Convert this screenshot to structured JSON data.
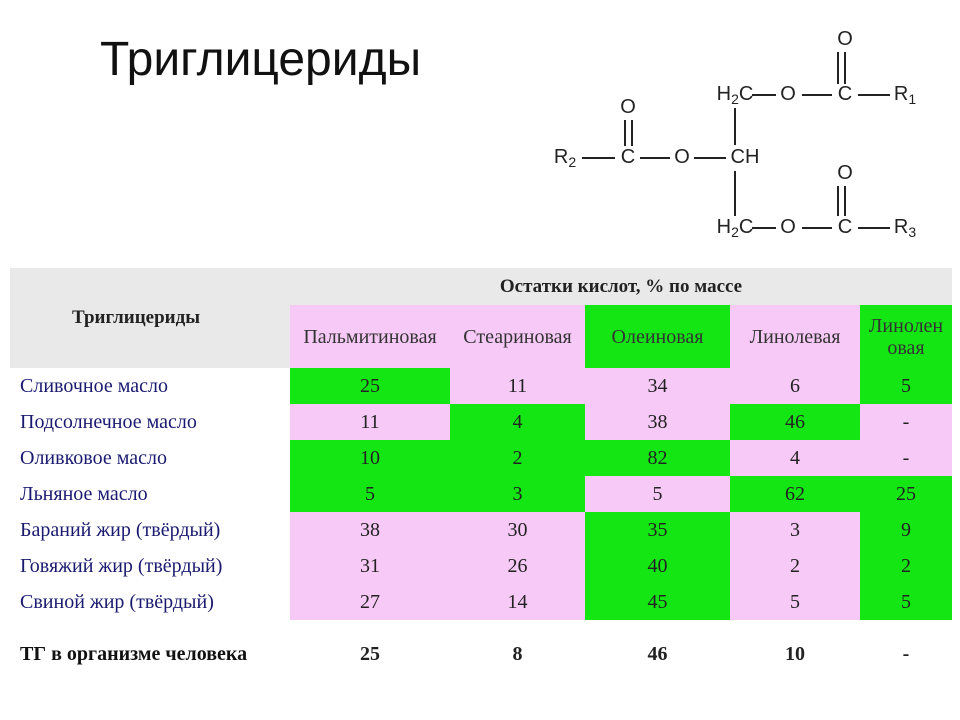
{
  "title": "Триглицериды",
  "structure": {
    "atoms": [
      {
        "text": "O"
      },
      {
        "text": "H",
        "sub": "2",
        "tail": "C"
      },
      {
        "text": "O"
      },
      {
        "text": "C"
      },
      {
        "text": "R",
        "sub": "1"
      },
      {
        "text": "O"
      },
      {
        "text": "R",
        "sub": "2"
      },
      {
        "text": "C"
      },
      {
        "text": "O"
      },
      {
        "text": "CH"
      },
      {
        "text": "O"
      },
      {
        "text": "H",
        "sub": "2",
        "tail": "C"
      },
      {
        "text": "O"
      },
      {
        "text": "C"
      },
      {
        "text": "R",
        "sub": "3"
      }
    ]
  },
  "table": {
    "corner": "Триглицериды",
    "group_header": "Остатки кислот, % по массе",
    "columns": [
      "Пальмитиновая",
      "Стеариновая",
      "Олеиновая",
      "Линолевая",
      "Линоленовая"
    ],
    "colors": {
      "green": "#14e614",
      "pink": "#f7c9f7",
      "header": "#e9e9e9"
    },
    "column_fill": [
      "pink",
      "pink",
      "green",
      "pink",
      "green"
    ],
    "rows": [
      {
        "label": "Сливочное масло",
        "values": [
          25,
          11,
          34,
          6,
          5
        ],
        "fill": [
          "green",
          "pink",
          "pink",
          "pink",
          "green"
        ]
      },
      {
        "label": "Подсолнечное масло",
        "values": [
          11,
          4,
          38,
          46,
          "-"
        ],
        "fill": [
          "pink",
          "green",
          "pink",
          "green",
          "pink"
        ]
      },
      {
        "label": "Оливковое масло",
        "values": [
          10,
          2,
          82,
          4,
          "-"
        ],
        "fill": [
          "green",
          "green",
          "green",
          "pink",
          "pink"
        ]
      },
      {
        "label": "Льняное масло",
        "values": [
          5,
          3,
          5,
          62,
          25
        ],
        "fill": [
          "green",
          "green",
          "pink",
          "green",
          "green"
        ]
      },
      {
        "label": "Бараний жир (твёрдый)",
        "values": [
          38,
          30,
          35,
          3,
          9
        ],
        "fill": [
          "pink",
          "pink",
          "green",
          "pink",
          "green"
        ]
      },
      {
        "label": "Говяжий жир (твёрдый)",
        "values": [
          31,
          26,
          40,
          2,
          2
        ],
        "fill": [
          "pink",
          "pink",
          "green",
          "pink",
          "green"
        ]
      },
      {
        "label": "Свиной жир (твёрдый)",
        "values": [
          27,
          14,
          45,
          5,
          5
        ],
        "fill": [
          "pink",
          "pink",
          "green",
          "pink",
          "green"
        ]
      }
    ],
    "total": {
      "label": "ТГ в организме человека",
      "values": [
        25,
        8,
        46,
        10,
        "-"
      ]
    }
  }
}
